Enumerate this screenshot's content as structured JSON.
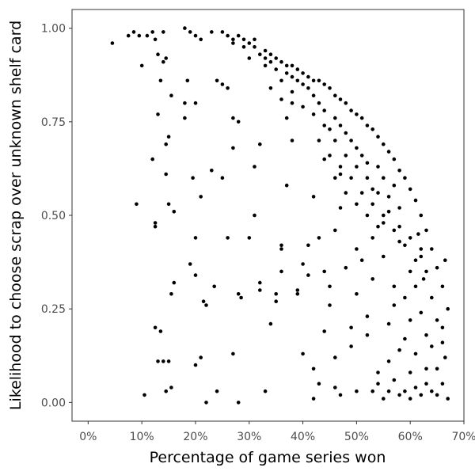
{
  "chart_data": {
    "type": "scatter",
    "title": "",
    "xlabel": "Percentage of game series won",
    "ylabel": "Likelihood to choose scrap over unknown shelf card",
    "xlim": [
      -0.03,
      0.7
    ],
    "ylim": [
      -0.05,
      1.05
    ],
    "x_ticks": [
      0,
      0.1,
      0.2,
      0.3,
      0.4,
      0.5,
      0.6,
      0.7
    ],
    "x_tick_labels": [
      "0%",
      "10%",
      "20%",
      "30%",
      "40%",
      "50%",
      "60%",
      "70%"
    ],
    "y_ticks": [
      0,
      0.25,
      0.5,
      0.75,
      1.0
    ],
    "y_tick_labels": [
      "0.00",
      "0.25",
      "0.50",
      "0.75",
      "1.00"
    ],
    "grid": false,
    "point_color": "#000000",
    "points": [
      [
        0.045,
        0.96
      ],
      [
        0.075,
        0.98
      ],
      [
        0.085,
        0.99
      ],
      [
        0.095,
        0.98
      ],
      [
        0.11,
        0.98
      ],
      [
        0.12,
        0.99
      ],
      [
        0.125,
        0.97
      ],
      [
        0.14,
        0.99
      ],
      [
        0.18,
        1.0
      ],
      [
        0.19,
        0.99
      ],
      [
        0.2,
        0.98
      ],
      [
        0.21,
        0.97
      ],
      [
        0.23,
        0.99
      ],
      [
        0.25,
        0.99
      ],
      [
        0.26,
        0.98
      ],
      [
        0.27,
        0.97
      ],
      [
        0.28,
        0.98
      ],
      [
        0.29,
        0.97
      ],
      [
        0.3,
        0.96
      ],
      [
        0.31,
        0.95
      ],
      [
        0.32,
        0.93
      ],
      [
        0.33,
        0.94
      ],
      [
        0.34,
        0.93
      ],
      [
        0.35,
        0.92
      ],
      [
        0.36,
        0.91
      ],
      [
        0.37,
        0.9
      ],
      [
        0.38,
        0.9
      ],
      [
        0.39,
        0.89
      ],
      [
        0.4,
        0.88
      ],
      [
        0.41,
        0.87
      ],
      [
        0.42,
        0.86
      ],
      [
        0.43,
        0.86
      ],
      [
        0.44,
        0.85
      ],
      [
        0.45,
        0.84
      ],
      [
        0.46,
        0.82
      ],
      [
        0.47,
        0.81
      ],
      [
        0.48,
        0.8
      ],
      [
        0.49,
        0.78
      ],
      [
        0.5,
        0.77
      ],
      [
        0.51,
        0.76
      ],
      [
        0.52,
        0.74
      ],
      [
        0.53,
        0.73
      ],
      [
        0.54,
        0.71
      ],
      [
        0.55,
        0.69
      ],
      [
        0.56,
        0.67
      ],
      [
        0.57,
        0.65
      ],
      [
        0.58,
        0.62
      ],
      [
        0.59,
        0.6
      ],
      [
        0.6,
        0.57
      ],
      [
        0.61,
        0.54
      ],
      [
        0.62,
        0.5
      ],
      [
        0.63,
        0.46
      ],
      [
        0.64,
        0.41
      ],
      [
        0.65,
        0.36
      ],
      [
        0.66,
        0.31
      ],
      [
        0.67,
        0.25
      ],
      [
        0.665,
        0.38
      ],
      [
        0.66,
        0.2
      ],
      [
        0.665,
        0.12
      ],
      [
        0.66,
        0.05
      ],
      [
        0.67,
        0.01
      ],
      [
        0.65,
        0.02
      ],
      [
        0.64,
        0.03
      ],
      [
        0.63,
        0.05
      ],
      [
        0.62,
        0.02
      ],
      [
        0.61,
        0.04
      ],
      [
        0.6,
        0.01
      ],
      [
        0.59,
        0.03
      ],
      [
        0.58,
        0.02
      ],
      [
        0.57,
        0.06
      ],
      [
        0.56,
        0.03
      ],
      [
        0.55,
        0.01
      ],
      [
        0.54,
        0.05
      ],
      [
        0.53,
        0.03
      ],
      [
        0.5,
        0.03
      ],
      [
        0.47,
        0.02
      ],
      [
        0.46,
        0.04
      ],
      [
        0.43,
        0.05
      ],
      [
        0.42,
        0.01
      ],
      [
        0.09,
        0.53
      ],
      [
        0.1,
        0.9
      ],
      [
        0.12,
        0.65
      ],
      [
        0.125,
        0.48
      ],
      [
        0.125,
        0.47
      ],
      [
        0.125,
        0.2
      ],
      [
        0.135,
        0.19
      ],
      [
        0.13,
        0.11
      ],
      [
        0.14,
        0.11
      ],
      [
        0.145,
        0.03
      ],
      [
        0.15,
        0.11
      ],
      [
        0.155,
        0.04
      ],
      [
        0.105,
        0.02
      ],
      [
        0.145,
        0.61
      ],
      [
        0.145,
        0.69
      ],
      [
        0.15,
        0.71
      ],
      [
        0.15,
        0.53
      ],
      [
        0.155,
        0.29
      ],
      [
        0.16,
        0.32
      ],
      [
        0.16,
        0.51
      ],
      [
        0.155,
        0.82
      ],
      [
        0.14,
        0.91
      ],
      [
        0.145,
        0.92
      ],
      [
        0.135,
        0.86
      ],
      [
        0.13,
        0.77
      ],
      [
        0.13,
        0.93
      ],
      [
        0.18,
        0.76
      ],
      [
        0.18,
        0.8
      ],
      [
        0.185,
        0.86
      ],
      [
        0.2,
        0.8
      ],
      [
        0.195,
        0.6
      ],
      [
        0.21,
        0.55
      ],
      [
        0.2,
        0.44
      ],
      [
        0.19,
        0.37
      ],
      [
        0.2,
        0.34
      ],
      [
        0.2,
        0.1
      ],
      [
        0.21,
        0.12
      ],
      [
        0.215,
        0.27
      ],
      [
        0.22,
        0.26
      ],
      [
        0.22,
        0.0
      ],
      [
        0.24,
        0.03
      ],
      [
        0.235,
        0.31
      ],
      [
        0.23,
        0.62
      ],
      [
        0.24,
        0.86
      ],
      [
        0.25,
        0.85
      ],
      [
        0.26,
        0.84
      ],
      [
        0.25,
        0.6
      ],
      [
        0.26,
        0.44
      ],
      [
        0.27,
        0.68
      ],
      [
        0.27,
        0.76
      ],
      [
        0.28,
        0.75
      ],
      [
        0.28,
        0.29
      ],
      [
        0.285,
        0.28
      ],
      [
        0.27,
        0.13
      ],
      [
        0.28,
        0.0
      ],
      [
        0.3,
        0.44
      ],
      [
        0.31,
        0.5
      ],
      [
        0.31,
        0.63
      ],
      [
        0.32,
        0.69
      ],
      [
        0.32,
        0.32
      ],
      [
        0.32,
        0.3
      ],
      [
        0.33,
        0.03
      ],
      [
        0.34,
        0.21
      ],
      [
        0.35,
        0.27
      ],
      [
        0.35,
        0.29
      ],
      [
        0.36,
        0.41
      ],
      [
        0.36,
        0.42
      ],
      [
        0.36,
        0.35
      ],
      [
        0.37,
        0.58
      ],
      [
        0.37,
        0.76
      ],
      [
        0.38,
        0.8
      ],
      [
        0.38,
        0.7
      ],
      [
        0.39,
        0.3
      ],
      [
        0.39,
        0.29
      ],
      [
        0.4,
        0.13
      ],
      [
        0.4,
        0.37
      ],
      [
        0.41,
        0.42
      ],
      [
        0.41,
        0.34
      ],
      [
        0.42,
        0.09
      ],
      [
        0.42,
        0.55
      ],
      [
        0.43,
        0.44
      ],
      [
        0.44,
        0.19
      ],
      [
        0.44,
        0.35
      ],
      [
        0.45,
        0.31
      ],
      [
        0.45,
        0.26
      ],
      [
        0.46,
        0.12
      ],
      [
        0.46,
        0.46
      ],
      [
        0.47,
        0.52
      ],
      [
        0.47,
        0.61
      ],
      [
        0.48,
        0.36
      ],
      [
        0.49,
        0.2
      ],
      [
        0.49,
        0.15
      ],
      [
        0.5,
        0.29
      ],
      [
        0.5,
        0.41
      ],
      [
        0.51,
        0.38
      ],
      [
        0.52,
        0.23
      ],
      [
        0.52,
        0.18
      ],
      [
        0.53,
        0.44
      ],
      [
        0.53,
        0.33
      ],
      [
        0.54,
        0.08
      ],
      [
        0.55,
        0.39
      ],
      [
        0.55,
        0.48
      ],
      [
        0.56,
        0.11
      ],
      [
        0.56,
        0.21
      ],
      [
        0.57,
        0.31
      ],
      [
        0.57,
        0.26
      ],
      [
        0.58,
        0.43
      ],
      [
        0.58,
        0.14
      ],
      [
        0.59,
        0.17
      ],
      [
        0.59,
        0.28
      ],
      [
        0.6,
        0.35
      ],
      [
        0.6,
        0.22
      ],
      [
        0.6,
        0.08
      ],
      [
        0.61,
        0.31
      ],
      [
        0.61,
        0.13
      ],
      [
        0.62,
        0.24
      ],
      [
        0.62,
        0.39
      ],
      [
        0.63,
        0.18
      ],
      [
        0.63,
        0.09
      ],
      [
        0.64,
        0.28
      ],
      [
        0.64,
        0.15
      ],
      [
        0.65,
        0.22
      ],
      [
        0.65,
        0.09
      ],
      [
        0.66,
        0.16
      ],
      [
        0.625,
        0.33
      ],
      [
        0.615,
        0.45
      ],
      [
        0.57,
        0.58
      ],
      [
        0.58,
        0.52
      ],
      [
        0.56,
        0.55
      ],
      [
        0.55,
        0.6
      ],
      [
        0.54,
        0.63
      ],
      [
        0.53,
        0.57
      ],
      [
        0.52,
        0.64
      ],
      [
        0.51,
        0.66
      ],
      [
        0.5,
        0.68
      ],
      [
        0.49,
        0.7
      ],
      [
        0.48,
        0.72
      ],
      [
        0.47,
        0.74
      ],
      [
        0.46,
        0.76
      ],
      [
        0.45,
        0.73
      ],
      [
        0.44,
        0.78
      ],
      [
        0.43,
        0.8
      ],
      [
        0.42,
        0.82
      ],
      [
        0.41,
        0.84
      ],
      [
        0.4,
        0.85
      ],
      [
        0.39,
        0.86
      ],
      [
        0.38,
        0.87
      ],
      [
        0.37,
        0.88
      ],
      [
        0.36,
        0.86
      ],
      [
        0.35,
        0.89
      ],
      [
        0.34,
        0.91
      ],
      [
        0.33,
        0.92
      ],
      [
        0.34,
        0.84
      ],
      [
        0.36,
        0.81
      ],
      [
        0.38,
        0.83
      ],
      [
        0.4,
        0.79
      ],
      [
        0.42,
        0.77
      ],
      [
        0.44,
        0.74
      ],
      [
        0.46,
        0.7
      ],
      [
        0.48,
        0.66
      ],
      [
        0.5,
        0.63
      ],
      [
        0.52,
        0.6
      ],
      [
        0.54,
        0.56
      ],
      [
        0.56,
        0.51
      ],
      [
        0.58,
        0.47
      ],
      [
        0.6,
        0.44
      ],
      [
        0.62,
        0.41
      ],
      [
        0.44,
        0.65
      ],
      [
        0.46,
        0.6
      ],
      [
        0.48,
        0.56
      ],
      [
        0.5,
        0.53
      ],
      [
        0.52,
        0.5
      ],
      [
        0.54,
        0.47
      ],
      [
        0.43,
        0.7
      ],
      [
        0.45,
        0.66
      ],
      [
        0.47,
        0.63
      ],
      [
        0.49,
        0.6
      ],
      [
        0.51,
        0.56
      ],
      [
        0.53,
        0.53
      ],
      [
        0.55,
        0.5
      ],
      [
        0.57,
        0.46
      ],
      [
        0.59,
        0.42
      ],
      [
        0.61,
        0.38
      ],
      [
        0.63,
        0.35
      ],
      [
        0.27,
        0.96
      ],
      [
        0.29,
        0.95
      ],
      [
        0.31,
        0.97
      ],
      [
        0.33,
        0.9
      ],
      [
        0.3,
        0.92
      ]
    ]
  }
}
